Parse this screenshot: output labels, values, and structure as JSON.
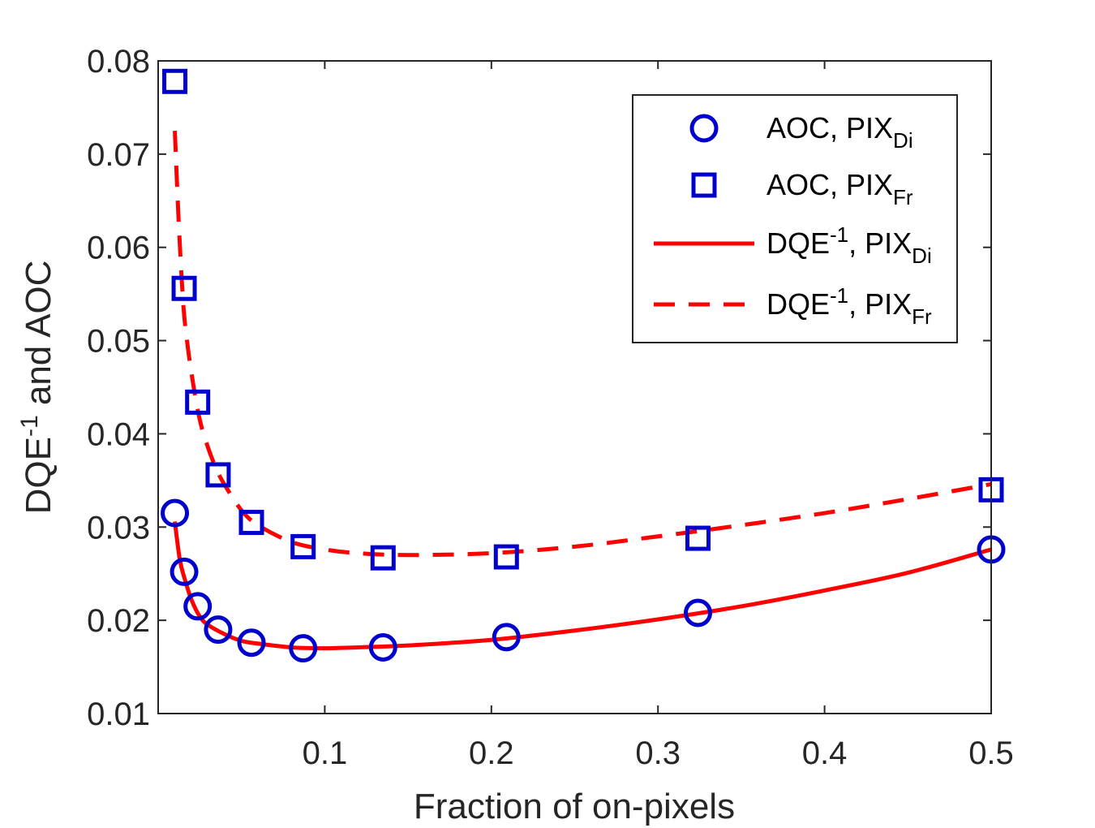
{
  "chart_data": {
    "type": "line",
    "xlabel": "Fraction of on-pixels",
    "ylabel": {
      "base": "DQE",
      "sup": "-1",
      "rest": " and AOC"
    },
    "xlim": [
      0,
      0.5
    ],
    "ylim": [
      0.01,
      0.08
    ],
    "xticks": [
      0.1,
      0.2,
      0.3,
      0.4,
      0.5
    ],
    "xtick_labels": [
      "0.1",
      "0.2",
      "0.3",
      "0.4",
      "0.5"
    ],
    "yticks": [
      0.01,
      0.02,
      0.03,
      0.04,
      0.05,
      0.06,
      0.07,
      0.08
    ],
    "ytick_labels": [
      "0.01",
      "0.02",
      "0.03",
      "0.04",
      "0.05",
      "0.06",
      "0.07",
      "0.08"
    ],
    "grid": false,
    "legend_position": "top-right",
    "series": [
      {
        "name": "AOC, PIX_Di",
        "label": {
          "main": "AOC, PIX",
          "sub": "Di"
        },
        "kind": "scatter",
        "marker": "circle",
        "color": "#0000cc",
        "x": [
          0.01,
          0.0156,
          0.0237,
          0.036,
          0.056,
          0.087,
          0.135,
          0.209,
          0.324,
          0.5
        ],
        "y": [
          0.0315,
          0.0252,
          0.0215,
          0.019,
          0.0176,
          0.017,
          0.0171,
          0.0182,
          0.0208,
          0.0276
        ]
      },
      {
        "name": "AOC, PIX_Fr",
        "label": {
          "main": "AOC, PIX",
          "sub": "Fr"
        },
        "kind": "scatter",
        "marker": "square",
        "color": "#0000cc",
        "x": [
          0.01,
          0.0156,
          0.0237,
          0.036,
          0.056,
          0.087,
          0.135,
          0.209,
          0.324,
          0.5
        ],
        "y": [
          0.0778,
          0.0556,
          0.0434,
          0.0356,
          0.0305,
          0.0279,
          0.0267,
          0.0268,
          0.0288,
          0.034
        ]
      },
      {
        "name": "DQE^-1, PIX_Di",
        "label": {
          "main": "DQE",
          "sup": "-1",
          "mid": ", PIX",
          "sub": "Di"
        },
        "kind": "line",
        "dash": "solid",
        "color": "#ff0000",
        "x": [
          0.01,
          0.013,
          0.016,
          0.02,
          0.025,
          0.03,
          0.04,
          0.05,
          0.06,
          0.08,
          0.1,
          0.12,
          0.15,
          0.2,
          0.25,
          0.3,
          0.35,
          0.4,
          0.45,
          0.5
        ],
        "y": [
          0.0306,
          0.0265,
          0.0244,
          0.0222,
          0.0204,
          0.0195,
          0.0185,
          0.0178,
          0.0175,
          0.0171,
          0.017,
          0.0171,
          0.0173,
          0.0179,
          0.0189,
          0.0201,
          0.0215,
          0.0232,
          0.0251,
          0.0276
        ]
      },
      {
        "name": "DQE^-1, PIX_Fr",
        "label": {
          "main": "DQE",
          "sup": "-1",
          "mid": ", PIX",
          "sub": "Fr"
        },
        "kind": "line",
        "dash": "dashed",
        "color": "#ff0000",
        "x": [
          0.01,
          0.012,
          0.014,
          0.016,
          0.02,
          0.025,
          0.03,
          0.035,
          0.04,
          0.05,
          0.06,
          0.08,
          0.1,
          0.12,
          0.15,
          0.2,
          0.25,
          0.3,
          0.35,
          0.4,
          0.45,
          0.5
        ],
        "y": [
          0.0725,
          0.064,
          0.057,
          0.052,
          0.0465,
          0.0415,
          0.0385,
          0.0362,
          0.0345,
          0.0318,
          0.0302,
          0.0284,
          0.0276,
          0.0272,
          0.027,
          0.0272,
          0.0279,
          0.029,
          0.0302,
          0.0315,
          0.033,
          0.0346
        ]
      }
    ]
  }
}
